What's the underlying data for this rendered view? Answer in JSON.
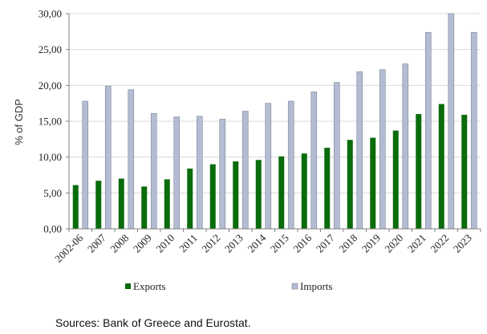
{
  "chart_data": {
    "type": "bar",
    "title": "",
    "xlabel": "",
    "ylabel": "% of GDP",
    "ylim": [
      0,
      30
    ],
    "ytick_values": [
      0,
      5,
      10,
      15,
      20,
      25,
      30
    ],
    "ytick_labels": [
      "0,00",
      "5,00",
      "10,00",
      "15,00",
      "20,00",
      "25,00",
      "30,00"
    ],
    "categories": [
      "2002-06",
      "2007",
      "2008",
      "2009",
      "2010",
      "2011",
      "2012",
      "2013",
      "2014",
      "2015",
      "2016",
      "2017",
      "2018",
      "2019",
      "2020",
      "2021",
      "2022",
      "2023"
    ],
    "series": [
      {
        "name": "Exports",
        "color": "#0a6b0a",
        "values": [
          6.1,
          6.7,
          7.0,
          5.9,
          6.9,
          8.4,
          9.0,
          9.4,
          9.6,
          10.1,
          10.5,
          11.3,
          12.4,
          12.7,
          13.7,
          16.0,
          17.4,
          15.9
        ]
      },
      {
        "name": "Imports",
        "color": "#b4bcd3",
        "values": [
          17.8,
          19.9,
          19.4,
          16.1,
          15.6,
          15.7,
          15.3,
          16.4,
          17.5,
          17.8,
          19.1,
          20.4,
          21.9,
          22.2,
          23.0,
          27.4,
          30.0,
          27.4
        ]
      }
    ],
    "grid": "horizontal",
    "legend_position": "bottom"
  },
  "source_note": "Sources: Bank of Greece and Eurostat."
}
